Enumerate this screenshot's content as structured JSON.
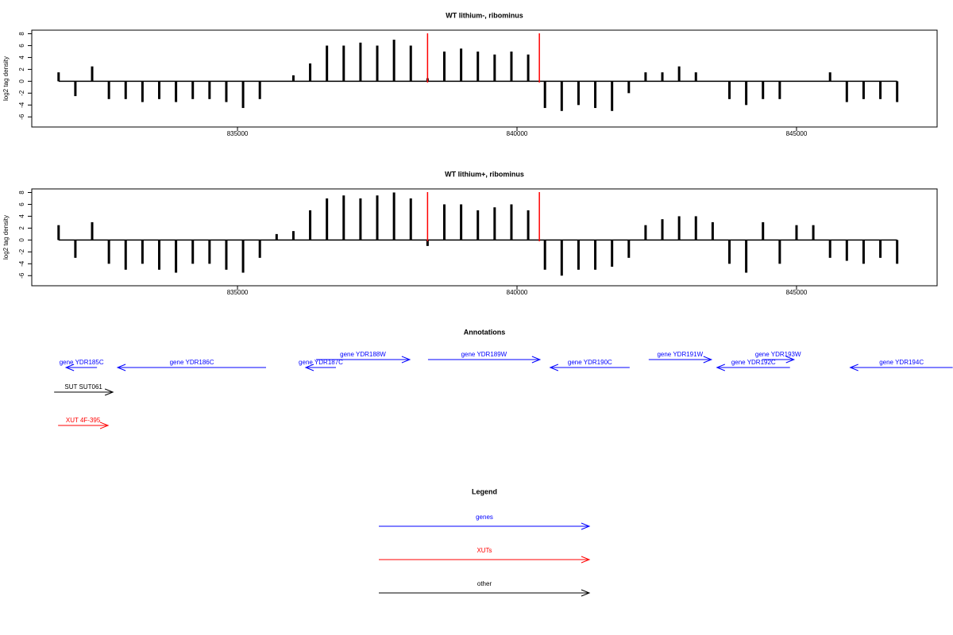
{
  "chart_data": [
    {
      "type": "bar",
      "title": "WT lithium-, ribominus",
      "y_label": "log2 tag density",
      "color": "#000000",
      "x": [
        831800,
        832100,
        832400,
        832700,
        833000,
        833300,
        833600,
        833900,
        834200,
        834500,
        834800,
        835100,
        835400,
        835700,
        836000,
        836300,
        836600,
        836900,
        837200,
        837500,
        837800,
        838100,
        838400,
        838700,
        839000,
        839300,
        839600,
        839900,
        840200,
        840500,
        840800,
        841100,
        841400,
        841700,
        842000,
        842300,
        842600,
        842900,
        843200,
        843500,
        843800,
        844100,
        844400,
        844700,
        845000,
        845300,
        845600,
        845900,
        846200,
        846500,
        846800
      ],
      "values": [
        1.5,
        -2.5,
        2.5,
        -3,
        -3,
        -3.5,
        -3,
        -3.5,
        -3,
        -3,
        -3.5,
        -4.5,
        -3,
        0,
        1,
        3,
        6,
        6,
        6.5,
        6,
        7,
        6,
        0.5,
        5,
        5.5,
        5,
        4.5,
        5,
        4.5,
        -4.5,
        -5,
        -4,
        -4.5,
        -5,
        -2,
        1.5,
        1.5,
        2.5,
        1.5,
        0,
        -3,
        -4,
        -3,
        -3,
        0,
        0,
        1.5,
        -3.5,
        -3,
        -3,
        -3.5
      ],
      "xlim": [
        831320,
        847515
      ],
      "ylim": [
        -7.7,
        8.6
      ],
      "xticks": [
        835000,
        840000,
        845000
      ],
      "yticks": [
        -6,
        -4,
        -2,
        0,
        2,
        4,
        6,
        8
      ],
      "highlight": {
        "color": "#ff0000",
        "x": [
          838400,
          840400
        ]
      }
    },
    {
      "type": "bar",
      "title": "WT lithium+, ribominus",
      "y_label": "log2 tag density",
      "color": "#000000",
      "x": [
        831800,
        832100,
        832400,
        832700,
        833000,
        833300,
        833600,
        833900,
        834200,
        834500,
        834800,
        835100,
        835400,
        835700,
        836000,
        836300,
        836600,
        836900,
        837200,
        837500,
        837800,
        838100,
        838400,
        838700,
        839000,
        839300,
        839600,
        839900,
        840200,
        840500,
        840800,
        841100,
        841400,
        841700,
        842000,
        842300,
        842600,
        842900,
        843200,
        843500,
        843800,
        844100,
        844400,
        844700,
        845000,
        845300,
        845600,
        845900,
        846200,
        846500,
        846800
      ],
      "values": [
        2.5,
        -3,
        3,
        -4,
        -5,
        -4,
        -5,
        -5.5,
        -4,
        -4,
        -5,
        -5.5,
        -3,
        1,
        1.5,
        5,
        7,
        7.5,
        7,
        7.5,
        8,
        7,
        -1,
        6,
        6,
        5,
        5.5,
        6,
        5,
        -5,
        -6,
        -5,
        -5,
        -4.5,
        -3,
        2.5,
        3.5,
        4,
        4,
        3,
        -4,
        -5.5,
        3,
        -4,
        2.5,
        2.5,
        -3,
        -3.5,
        -4,
        -3,
        -4
      ],
      "xlim": [
        831320,
        847515
      ],
      "ylim": [
        -7.7,
        8.6
      ],
      "xticks": [
        835000,
        840000,
        845000
      ],
      "yticks": [
        -6,
        -4,
        -2,
        0,
        2,
        4,
        6,
        8
      ],
      "highlight": {
        "color": "#ff0000",
        "x": [
          838400,
          840400
        ]
      }
    }
  ],
  "annotations": {
    "title": "Annotations",
    "tracks": [
      {
        "color": "#0000ff",
        "features": [
          {
            "label": "gene YDR185C",
            "start": 831933,
            "end": 832487,
            "strand": "-"
          },
          {
            "label": "gene YDR186C",
            "start": 832856,
            "end": 835511,
            "strand": "-"
          },
          {
            "label": "gene YDR187C",
            "start": 836221,
            "end": 836761,
            "strand": "-"
          },
          {
            "label": "gene YDR188W",
            "start": 836406,
            "end": 838081,
            "strand": "+"
          },
          {
            "label": "gene YDR189W",
            "start": 838408,
            "end": 840410,
            "strand": "+"
          },
          {
            "label": "gene YDR190C",
            "start": 840595,
            "end": 842015,
            "strand": "-"
          },
          {
            "label": "gene YDR191W",
            "start": 842356,
            "end": 843477,
            "strand": "+"
          },
          {
            "label": "gene YDR192C",
            "start": 843577,
            "end": 844883,
            "strand": "-"
          },
          {
            "label": "gene YDR193W",
            "start": 844386,
            "end": 844954,
            "strand": "+"
          },
          {
            "label": "gene YDR194C",
            "start": 845962,
            "end": 847794,
            "strand": "-"
          }
        ]
      },
      {
        "color": "#000000",
        "features": [
          {
            "label": "SUT SUT061",
            "start": 831720,
            "end": 832771,
            "strand": "+"
          }
        ]
      },
      {
        "color": "#ff0000",
        "features": [
          {
            "label": "XUT 4F-395",
            "start": 831791,
            "end": 832685,
            "strand": "+"
          }
        ]
      }
    ]
  },
  "legend": {
    "title": "Legend",
    "items": [
      {
        "label": "genes",
        "color": "#0000ff"
      },
      {
        "label": "XUTs",
        "color": "#ff0000"
      },
      {
        "label": "other",
        "color": "#000000"
      }
    ]
  }
}
